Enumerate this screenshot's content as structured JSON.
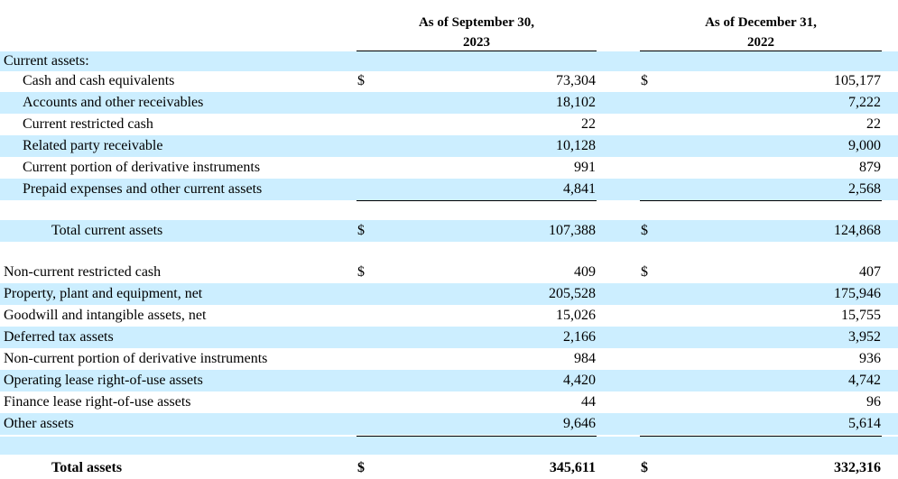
{
  "headers": {
    "col1": [
      "As of September 30,",
      "2023"
    ],
    "col2": [
      "As of December 31,",
      "2022"
    ]
  },
  "section_current": "Current assets:",
  "current_items": [
    {
      "label": "Cash and cash equivalents",
      "d1": "$",
      "v1": "73,304",
      "d2": "$",
      "v2": "105,177"
    },
    {
      "label": "Accounts and other receivables",
      "d1": "",
      "v1": "18,102",
      "d2": "",
      "v2": "7,222"
    },
    {
      "label": "Current restricted cash",
      "d1": "",
      "v1": "22",
      "d2": "",
      "v2": "22"
    },
    {
      "label": "Related party receivable",
      "d1": "",
      "v1": "10,128",
      "d2": "",
      "v2": "9,000"
    },
    {
      "label": "Current portion of derivative instruments",
      "d1": "",
      "v1": "991",
      "d2": "",
      "v2": "879"
    },
    {
      "label": "Prepaid expenses and other current assets",
      "d1": "",
      "v1": "4,841",
      "d2": "",
      "v2": "2,568"
    }
  ],
  "total_current": {
    "label": "Total current assets",
    "d1": "$",
    "v1": "107,388",
    "d2": "$",
    "v2": "124,868"
  },
  "noncurrent_items": [
    {
      "label": "Non-current restricted cash",
      "d1": "$",
      "v1": "409",
      "d2": "$",
      "v2": "407"
    },
    {
      "label": "Property, plant and equipment, net",
      "d1": "",
      "v1": "205,528",
      "d2": "",
      "v2": "175,946"
    },
    {
      "label": "Goodwill and intangible assets, net",
      "d1": "",
      "v1": "15,026",
      "d2": "",
      "v2": "15,755"
    },
    {
      "label": "Deferred tax assets",
      "d1": "",
      "v1": "2,166",
      "d2": "",
      "v2": "3,952"
    },
    {
      "label": "Non-current portion of derivative instruments",
      "d1": "",
      "v1": "984",
      "d2": "",
      "v2": "936"
    },
    {
      "label": "Operating lease right-of-use assets",
      "d1": "",
      "v1": "4,420",
      "d2": "",
      "v2": "4,742"
    },
    {
      "label": "Finance lease right-of-use assets",
      "d1": "",
      "v1": "44",
      "d2": "",
      "v2": "96"
    },
    {
      "label": "Other assets",
      "d1": "",
      "v1": "9,646",
      "d2": "",
      "v2": "5,614"
    }
  ],
  "total_assets": {
    "label": "Total assets",
    "d1": "$",
    "v1": "345,611",
    "d2": "$",
    "v2": "332,316"
  }
}
